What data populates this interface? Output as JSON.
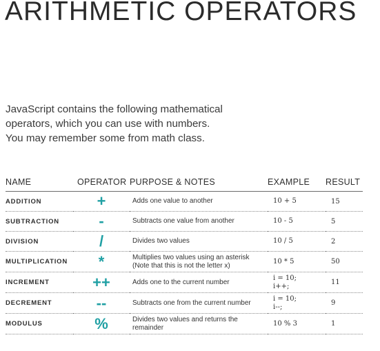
{
  "title": "ARITHMETIC OPERATORS",
  "intro": {
    "line1": "JavaScript contains the following mathematical",
    "line2": "operators, which you can use with numbers.",
    "line3": "You may remember some from math class."
  },
  "table": {
    "headers": {
      "name": "NAME",
      "operator": "OPERATOR",
      "purpose": "PURPOSE & NOTES",
      "example": "EXAMPLE",
      "result": "RESULT"
    },
    "operator_color": "#20a0a4",
    "rows": [
      {
        "name": "ADDITION",
        "operator": "+",
        "purpose": "Adds one value to another",
        "example": "10 + 5",
        "result": "15"
      },
      {
        "name": "SUBTRACTION",
        "operator": "-",
        "purpose": "Subtracts one value from another",
        "example": "10 - 5",
        "result": "5"
      },
      {
        "name": "DIVISION",
        "operator": "/",
        "purpose": "Divides two values",
        "example": "10 / 5",
        "result": "2"
      },
      {
        "name": "MULTIPLICATION",
        "operator": "*",
        "purpose": "Multiplies two values using an asterisk (Note that this is not the letter x)",
        "example": "10 * 5",
        "result": "50"
      },
      {
        "name": "INCREMENT",
        "operator": "++",
        "purpose": "Adds one to the current number",
        "example": "i = 10;\ni++;",
        "result": "11"
      },
      {
        "name": "DECREMENT",
        "operator": "--",
        "purpose": "Subtracts one from the current number",
        "example": "i = 10;\ni--;",
        "result": "9"
      },
      {
        "name": "MODULUS",
        "operator": "%",
        "purpose": "Divides two values and returns the remainder",
        "example": "10 % 3",
        "result": "1"
      }
    ]
  }
}
